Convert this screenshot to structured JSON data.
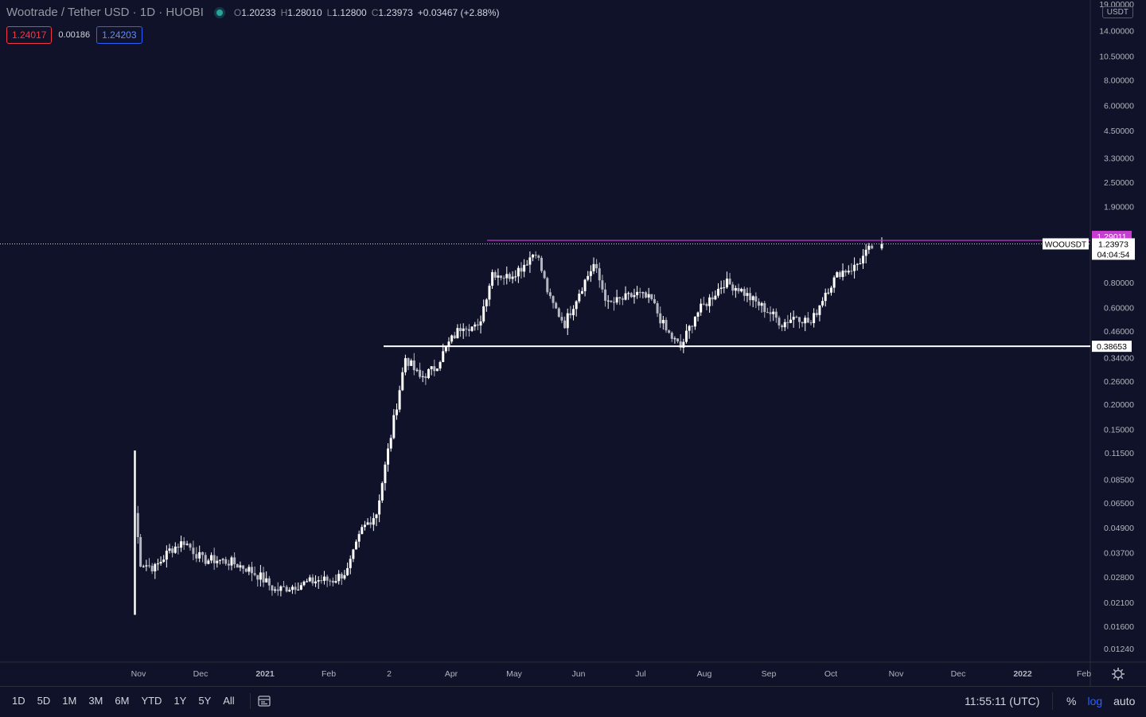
{
  "header": {
    "symbol_title": "Wootrade / Tether USD · 1D · HUOBI",
    "ohlc": [
      {
        "k": "O",
        "v": "1.20233"
      },
      {
        "k": "H",
        "v": "1.28010"
      },
      {
        "k": "L",
        "v": "1.12800"
      },
      {
        "k": "C",
        "v": "1.23973"
      }
    ],
    "change": "+0.03467 (+2.88%)",
    "bid": "1.24017",
    "spread": "0.00186",
    "ask": "1.24203"
  },
  "price_axis": {
    "unit": "USDT",
    "scale": "log",
    "ticks": [
      "19.00000",
      "14.00000",
      "10.50000",
      "8.00000",
      "6.00000",
      "4.50000",
      "3.30000",
      "2.50000",
      "1.90000",
      "0.80000",
      "0.60000",
      "0.46000",
      "0.34000",
      "0.26000",
      "0.20000",
      "0.15000",
      "0.11500",
      "0.08500",
      "0.06500",
      "0.04900",
      "0.03700",
      "0.02800",
      "0.02100",
      "0.01600",
      "0.01240"
    ]
  },
  "time_axis": {
    "ticks": [
      "Nov",
      "Dec",
      "2021",
      "Feb",
      "2",
      "Apr",
      "May",
      "Jun",
      "Jul",
      "Aug",
      "Sep",
      "Oct",
      "Nov",
      "Dec",
      "2022",
      "Feb"
    ]
  },
  "markers": {
    "resistance": {
      "label": "1.29011",
      "color": "#c73dd0"
    },
    "support": {
      "label": "0.38653",
      "color": "#ffffff"
    },
    "last_price": {
      "symbol": "WOOUSDT",
      "price": "1.23973",
      "countdown": "04:04:54"
    }
  },
  "bottom": {
    "ranges": [
      "1D",
      "5D",
      "1M",
      "3M",
      "6M",
      "YTD",
      "1Y",
      "5Y",
      "All"
    ],
    "clock": "11:55:11 (UTC)",
    "toggles": [
      {
        "label": "%",
        "active": false
      },
      {
        "label": "log",
        "active": true
      },
      {
        "label": "auto",
        "active": false
      }
    ]
  },
  "chart_data": {
    "type": "candlestick",
    "title": "Wootrade / Tether USD · 1D · HUOBI",
    "ylabel": "USDT",
    "yscale": "log",
    "ylim": [
      0.0115,
      19.0
    ],
    "x_tick_labels": [
      "Nov",
      "Dec",
      "2021",
      "Feb",
      "2",
      "Apr",
      "May",
      "Jun",
      "Jul",
      "Aug",
      "Sep",
      "Oct",
      "Nov",
      "Dec",
      "2022",
      "Feb"
    ],
    "weekly_closes_approx": [
      {
        "x": "2020-10-29",
        "close": 0.058
      },
      {
        "x": "2020-11-01",
        "close": 0.033
      },
      {
        "x": "2020-11-08",
        "close": 0.031
      },
      {
        "x": "2020-11-15",
        "close": 0.038
      },
      {
        "x": "2020-11-22",
        "close": 0.042
      },
      {
        "x": "2020-12-01",
        "close": 0.034
      },
      {
        "x": "2020-12-08",
        "close": 0.034
      },
      {
        "x": "2020-12-15",
        "close": 0.033
      },
      {
        "x": "2020-12-22",
        "close": 0.031
      },
      {
        "x": "2020-12-29",
        "close": 0.028
      },
      {
        "x": "2021-01-05",
        "close": 0.024
      },
      {
        "x": "2021-01-12",
        "close": 0.025
      },
      {
        "x": "2021-01-19",
        "close": 0.026
      },
      {
        "x": "2021-01-26",
        "close": 0.027
      },
      {
        "x": "2021-02-02",
        "close": 0.027
      },
      {
        "x": "2021-02-09",
        "close": 0.03
      },
      {
        "x": "2021-02-16",
        "close": 0.048
      },
      {
        "x": "2021-02-23",
        "close": 0.058
      },
      {
        "x": "2021-03-02",
        "close": 0.14
      },
      {
        "x": "2021-03-09",
        "close": 0.34
      },
      {
        "x": "2021-03-16",
        "close": 0.27
      },
      {
        "x": "2021-03-23",
        "close": 0.3
      },
      {
        "x": "2021-03-30",
        "close": 0.4
      },
      {
        "x": "2021-04-06",
        "close": 0.5
      },
      {
        "x": "2021-04-13",
        "close": 0.47
      },
      {
        "x": "2021-04-20",
        "close": 0.9
      },
      {
        "x": "2021-04-27",
        "close": 0.85
      },
      {
        "x": "2021-05-04",
        "close": 0.95
      },
      {
        "x": "2021-05-11",
        "close": 1.15
      },
      {
        "x": "2021-05-18",
        "close": 0.65
      },
      {
        "x": "2021-05-25",
        "close": 0.5
      },
      {
        "x": "2021-06-01",
        "close": 0.72
      },
      {
        "x": "2021-06-08",
        "close": 0.98
      },
      {
        "x": "2021-06-15",
        "close": 0.62
      },
      {
        "x": "2021-06-22",
        "close": 0.66
      },
      {
        "x": "2021-06-29",
        "close": 0.7
      },
      {
        "x": "2021-07-06",
        "close": 0.65
      },
      {
        "x": "2021-07-13",
        "close": 0.46
      },
      {
        "x": "2021-07-20",
        "close": 0.38
      },
      {
        "x": "2021-07-27",
        "close": 0.55
      },
      {
        "x": "2021-08-03",
        "close": 0.66
      },
      {
        "x": "2021-08-10",
        "close": 0.8
      },
      {
        "x": "2021-08-17",
        "close": 0.75
      },
      {
        "x": "2021-08-24",
        "close": 0.65
      },
      {
        "x": "2021-08-31",
        "close": 0.58
      },
      {
        "x": "2021-09-07",
        "close": 0.5
      },
      {
        "x": "2021-09-14",
        "close": 0.55
      },
      {
        "x": "2021-09-21",
        "close": 0.5
      },
      {
        "x": "2021-09-28",
        "close": 0.72
      },
      {
        "x": "2021-10-05",
        "close": 0.9
      },
      {
        "x": "2021-10-12",
        "close": 0.95
      },
      {
        "x": "2021-10-19",
        "close": 1.15
      },
      {
        "x": "2021-10-22",
        "close": 1.23973
      }
    ],
    "horizontal_levels": [
      {
        "label": "1.29011",
        "value": 1.29011
      },
      {
        "label": "0.38653",
        "value": 0.38653
      }
    ]
  }
}
